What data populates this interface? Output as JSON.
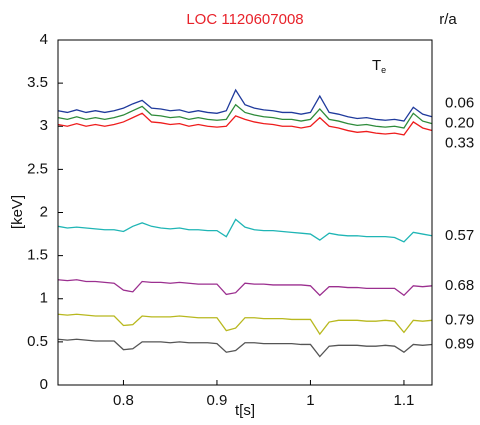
{
  "chart_data": {
    "type": "line",
    "title": "LOC 1120607008",
    "title_color": "#e8222a",
    "xlabel": "t[s]",
    "ylabel": "[keV]",
    "legend_title": "r/a",
    "annotation": {
      "text": "T",
      "subscript": "e"
    },
    "xlim": [
      0.73,
      1.13
    ],
    "xticks": [
      0.8,
      0.9,
      1,
      1.1
    ],
    "ylim": [
      0,
      4
    ],
    "yticks": [
      0,
      0.5,
      1,
      1.5,
      2,
      2.5,
      3,
      3.5,
      4
    ],
    "grid": false,
    "x": [
      0.73,
      0.74,
      0.75,
      0.76,
      0.77,
      0.78,
      0.79,
      0.8,
      0.81,
      0.82,
      0.83,
      0.84,
      0.85,
      0.86,
      0.87,
      0.88,
      0.89,
      0.9,
      0.91,
      0.92,
      0.93,
      0.94,
      0.95,
      0.96,
      0.97,
      0.98,
      0.99,
      1.0,
      1.01,
      1.02,
      1.03,
      1.04,
      1.05,
      1.06,
      1.07,
      1.08,
      1.09,
      1.1,
      1.11,
      1.12,
      1.13
    ],
    "series": [
      {
        "name": "0.06",
        "color": "#1f3a9c",
        "values": [
          3.18,
          3.16,
          3.19,
          3.16,
          3.18,
          3.16,
          3.18,
          3.21,
          3.26,
          3.3,
          3.21,
          3.2,
          3.18,
          3.19,
          3.16,
          3.18,
          3.16,
          3.15,
          3.18,
          3.42,
          3.25,
          3.21,
          3.19,
          3.18,
          3.16,
          3.16,
          3.14,
          3.16,
          3.35,
          3.16,
          3.14,
          3.11,
          3.09,
          3.1,
          3.08,
          3.07,
          3.08,
          3.06,
          3.22,
          3.14,
          3.11
        ]
      },
      {
        "name": "0.20",
        "color": "#2e8b3a",
        "values": [
          3.1,
          3.08,
          3.11,
          3.08,
          3.1,
          3.08,
          3.1,
          3.13,
          3.18,
          3.23,
          3.13,
          3.12,
          3.1,
          3.11,
          3.08,
          3.1,
          3.08,
          3.07,
          3.08,
          3.25,
          3.16,
          3.13,
          3.11,
          3.1,
          3.08,
          3.08,
          3.06,
          3.08,
          3.2,
          3.08,
          3.06,
          3.03,
          3.01,
          3.02,
          3.0,
          2.99,
          3.0,
          2.98,
          3.15,
          3.06,
          3.03
        ]
      },
      {
        "name": "0.33",
        "color": "#ee1c1c",
        "values": [
          3.02,
          3.0,
          3.03,
          3.0,
          3.02,
          3.0,
          3.02,
          3.05,
          3.1,
          3.15,
          3.05,
          3.04,
          3.02,
          3.03,
          3.0,
          3.02,
          3.0,
          2.99,
          3.0,
          3.12,
          3.08,
          3.05,
          3.03,
          3.02,
          3.0,
          3.0,
          2.98,
          3.0,
          3.1,
          3.0,
          2.98,
          2.95,
          2.93,
          2.94,
          2.92,
          2.91,
          2.92,
          2.9,
          3.05,
          2.98,
          2.95
        ]
      },
      {
        "name": "0.57",
        "color": "#1fb5b5",
        "values": [
          1.84,
          1.82,
          1.83,
          1.82,
          1.81,
          1.8,
          1.8,
          1.78,
          1.84,
          1.88,
          1.84,
          1.82,
          1.81,
          1.82,
          1.8,
          1.8,
          1.79,
          1.79,
          1.72,
          1.92,
          1.83,
          1.8,
          1.79,
          1.79,
          1.78,
          1.77,
          1.76,
          1.75,
          1.68,
          1.76,
          1.74,
          1.73,
          1.73,
          1.72,
          1.72,
          1.72,
          1.71,
          1.66,
          1.77,
          1.75,
          1.73
        ]
      },
      {
        "name": "0.68",
        "color": "#9b2f8f",
        "values": [
          1.22,
          1.21,
          1.22,
          1.2,
          1.2,
          1.19,
          1.18,
          1.1,
          1.08,
          1.2,
          1.19,
          1.19,
          1.18,
          1.19,
          1.18,
          1.17,
          1.17,
          1.17,
          1.05,
          1.07,
          1.18,
          1.17,
          1.17,
          1.16,
          1.16,
          1.16,
          1.16,
          1.15,
          1.04,
          1.14,
          1.14,
          1.13,
          1.13,
          1.12,
          1.12,
          1.12,
          1.12,
          1.04,
          1.15,
          1.14,
          1.15
        ]
      },
      {
        "name": "0.79",
        "color": "#b8b81e",
        "values": [
          0.82,
          0.81,
          0.82,
          0.81,
          0.8,
          0.8,
          0.8,
          0.69,
          0.7,
          0.8,
          0.79,
          0.79,
          0.79,
          0.8,
          0.79,
          0.78,
          0.78,
          0.78,
          0.63,
          0.66,
          0.78,
          0.78,
          0.77,
          0.77,
          0.77,
          0.76,
          0.76,
          0.76,
          0.59,
          0.73,
          0.75,
          0.75,
          0.75,
          0.74,
          0.74,
          0.75,
          0.74,
          0.61,
          0.75,
          0.74,
          0.75
        ]
      },
      {
        "name": "0.89",
        "color": "#555555",
        "values": [
          0.53,
          0.52,
          0.53,
          0.52,
          0.51,
          0.51,
          0.51,
          0.41,
          0.42,
          0.5,
          0.5,
          0.5,
          0.49,
          0.5,
          0.49,
          0.49,
          0.49,
          0.48,
          0.38,
          0.4,
          0.49,
          0.49,
          0.48,
          0.48,
          0.48,
          0.48,
          0.47,
          0.47,
          0.33,
          0.45,
          0.46,
          0.46,
          0.46,
          0.45,
          0.45,
          0.46,
          0.45,
          0.38,
          0.47,
          0.46,
          0.47
        ]
      }
    ]
  }
}
